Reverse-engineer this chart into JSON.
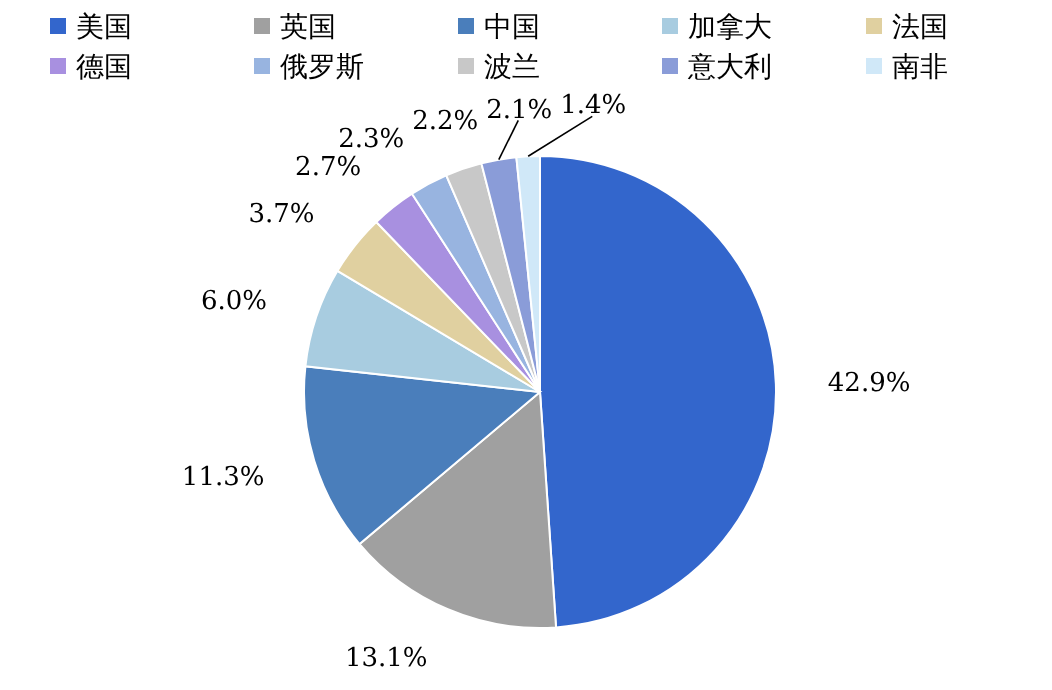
{
  "chart_data": {
    "type": "pie",
    "categories": [
      "美国",
      "英国",
      "中国",
      "加拿大",
      "法国",
      "德国",
      "俄罗斯",
      "波兰",
      "意大利",
      "南非"
    ],
    "values": [
      42.9,
      13.1,
      11.3,
      6.0,
      3.7,
      2.7,
      2.3,
      2.2,
      2.1,
      1.4
    ],
    "value_labels": [
      "42.9%",
      "13.1%",
      "11.3%",
      "6.0%",
      "3.7%",
      "2.7%",
      "2.3%",
      "2.2%",
      "2.1%",
      "1.4%"
    ],
    "colors": [
      "#3366cc",
      "#a0a0a0",
      "#4a7ebb",
      "#a8cce0",
      "#e0d0a0",
      "#a890e0",
      "#98b4e0",
      "#c8c8c8",
      "#8a9cd8",
      "#d0e8f8"
    ],
    "legend": "top"
  }
}
